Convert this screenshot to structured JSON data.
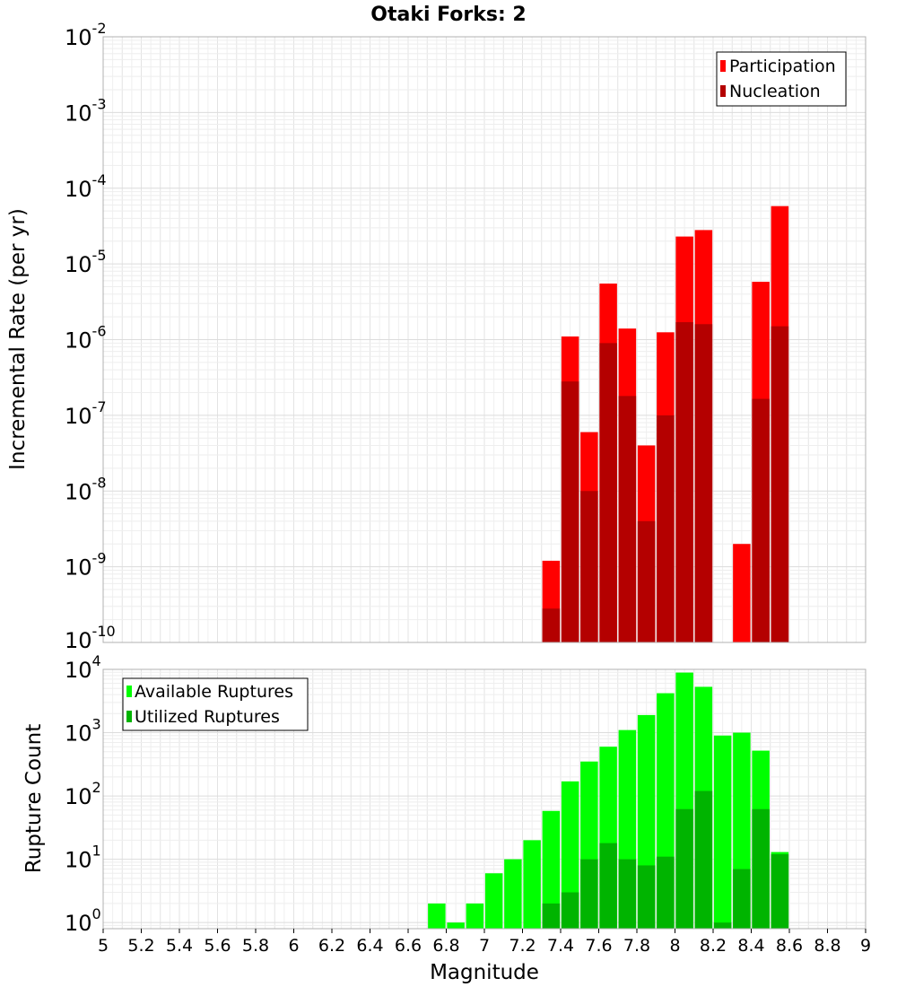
{
  "chart_data": [
    {
      "type": "bar",
      "title": "Otaki Forks: 2",
      "ylabel": "Incremental Rate (per yr)",
      "xlabel": "",
      "xlim": [
        5,
        9
      ],
      "ylim": [
        1e-10,
        0.01
      ],
      "yscale": "log",
      "grid": true,
      "legend_position": "top-right",
      "y_tick_labels": [
        {
          "base": "10",
          "exp": "-10"
        },
        {
          "base": "10",
          "exp": "-9"
        },
        {
          "base": "10",
          "exp": "-8"
        },
        {
          "base": "10",
          "exp": "-7"
        },
        {
          "base": "10",
          "exp": "-6"
        },
        {
          "base": "10",
          "exp": "-5"
        },
        {
          "base": "10",
          "exp": "-4"
        },
        {
          "base": "10",
          "exp": "-3"
        },
        {
          "base": "10",
          "exp": "-2"
        }
      ],
      "series": [
        {
          "name": "Participation",
          "color": "#ff0000",
          "points": [
            {
              "x": 7.35,
              "y": 1.2e-09
            },
            {
              "x": 7.45,
              "y": 1.1e-06
            },
            {
              "x": 7.55,
              "y": 6e-08
            },
            {
              "x": 7.65,
              "y": 5.5e-06
            },
            {
              "x": 7.75,
              "y": 1.4e-06
            },
            {
              "x": 7.85,
              "y": 4e-08
            },
            {
              "x": 7.95,
              "y": 1.25e-06
            },
            {
              "x": 8.05,
              "y": 2.3e-05
            },
            {
              "x": 8.15,
              "y": 2.8e-05
            },
            {
              "x": 8.35,
              "y": 2e-09
            },
            {
              "x": 8.45,
              "y": 5.8e-06
            },
            {
              "x": 8.55,
              "y": 5.8e-05
            }
          ]
        },
        {
          "name": "Nucleation",
          "color": "#b40000",
          "points": [
            {
              "x": 7.35,
              "y": 2.8e-10
            },
            {
              "x": 7.45,
              "y": 2.8e-07
            },
            {
              "x": 7.55,
              "y": 1e-08
            },
            {
              "x": 7.65,
              "y": 9e-07
            },
            {
              "x": 7.75,
              "y": 1.8e-07
            },
            {
              "x": 7.85,
              "y": 4e-09
            },
            {
              "x": 7.95,
              "y": 1e-07
            },
            {
              "x": 8.05,
              "y": 1.7e-06
            },
            {
              "x": 8.15,
              "y": 1.6e-06
            },
            {
              "x": 8.45,
              "y": 1.65e-07
            },
            {
              "x": 8.55,
              "y": 1.5e-06
            }
          ]
        }
      ]
    },
    {
      "type": "bar",
      "title": "",
      "ylabel": "Rupture Count",
      "xlabel": "Magnitude",
      "xlim": [
        5,
        9
      ],
      "ylim": [
        0.8,
        10000
      ],
      "yscale": "log",
      "grid": true,
      "legend_position": "top-left",
      "x_tick_labels": [
        "5",
        "5.2",
        "5.4",
        "5.6",
        "5.8",
        "6",
        "6.2",
        "6.4",
        "6.6",
        "6.8",
        "7",
        "7.2",
        "7.4",
        "7.6",
        "7.8",
        "8",
        "8.2",
        "8.4",
        "8.6",
        "8.8",
        "9"
      ],
      "y_tick_labels": [
        {
          "base": "10",
          "exp": "0"
        },
        {
          "base": "10",
          "exp": "1"
        },
        {
          "base": "10",
          "exp": "2"
        },
        {
          "base": "10",
          "exp": "3"
        },
        {
          "base": "10",
          "exp": "4"
        }
      ],
      "series": [
        {
          "name": "Available Ruptures",
          "color": "#00ff00",
          "points": [
            {
              "x": 6.75,
              "y": 2
            },
            {
              "x": 6.85,
              "y": 1
            },
            {
              "x": 6.95,
              "y": 2
            },
            {
              "x": 7.05,
              "y": 6
            },
            {
              "x": 7.15,
              "y": 10
            },
            {
              "x": 7.25,
              "y": 20
            },
            {
              "x": 7.35,
              "y": 58
            },
            {
              "x": 7.45,
              "y": 170
            },
            {
              "x": 7.55,
              "y": 350
            },
            {
              "x": 7.65,
              "y": 600
            },
            {
              "x": 7.75,
              "y": 1100
            },
            {
              "x": 7.85,
              "y": 1900
            },
            {
              "x": 7.95,
              "y": 4200
            },
            {
              "x": 8.05,
              "y": 8900
            },
            {
              "x": 8.15,
              "y": 5300
            },
            {
              "x": 8.25,
              "y": 900
            },
            {
              "x": 8.35,
              "y": 1000
            },
            {
              "x": 8.45,
              "y": 520
            },
            {
              "x": 8.55,
              "y": 13
            }
          ]
        },
        {
          "name": "Utilized Ruptures",
          "color": "#00b400",
          "points": [
            {
              "x": 7.35,
              "y": 2
            },
            {
              "x": 7.45,
              "y": 3
            },
            {
              "x": 7.55,
              "y": 10
            },
            {
              "x": 7.65,
              "y": 18
            },
            {
              "x": 7.75,
              "y": 10
            },
            {
              "x": 7.85,
              "y": 8
            },
            {
              "x": 7.95,
              "y": 11
            },
            {
              "x": 8.05,
              "y": 62
            },
            {
              "x": 8.15,
              "y": 120
            },
            {
              "x": 8.25,
              "y": 1
            },
            {
              "x": 8.35,
              "y": 7
            },
            {
              "x": 8.45,
              "y": 62
            },
            {
              "x": 8.55,
              "y": 12
            }
          ]
        }
      ]
    }
  ]
}
